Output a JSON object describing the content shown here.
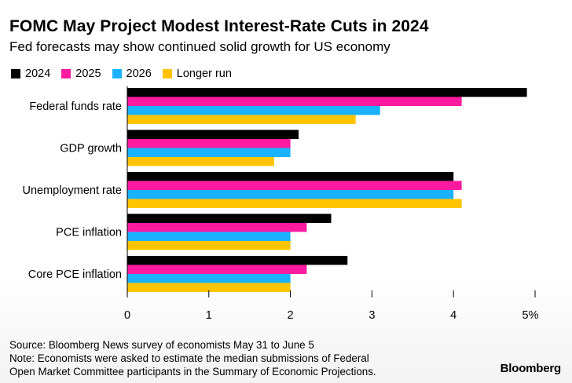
{
  "title": "FOMC May Project Modest Interest-Rate Cuts in 2024",
  "subtitle": "Fed forecasts may show continued solid growth for US economy",
  "chart_data": {
    "type": "bar",
    "orientation": "horizontal",
    "title": "FOMC May Project Modest Interest-Rate Cuts in 2024",
    "subtitle": "Fed forecasts may show continued solid growth for US economy",
    "categories": [
      "Federal funds rate",
      "GDP growth",
      "Unemployment rate",
      "PCE inflation",
      "Core PCE inflation"
    ],
    "series": [
      {
        "name": "2024",
        "color": "#000000",
        "values": [
          4.9,
          2.1,
          4.0,
          2.5,
          2.7
        ]
      },
      {
        "name": "2025",
        "color": "#ff1aa0",
        "values": [
          4.1,
          2.0,
          4.1,
          2.2,
          2.2
        ]
      },
      {
        "name": "2026",
        "color": "#1ab2ff",
        "values": [
          3.1,
          2.0,
          4.0,
          2.0,
          2.0
        ]
      },
      {
        "name": "Longer run",
        "color": "#ffc400",
        "values": [
          2.8,
          1.8,
          4.1,
          2.0,
          2.0
        ]
      }
    ],
    "xlim": [
      0,
      5
    ],
    "tick_labels": [
      "0",
      "1",
      "2",
      "3",
      "4",
      "5%"
    ],
    "xlabel": "",
    "ylabel": "",
    "grid": false,
    "legend_position": "top-left"
  },
  "footer": {
    "source": "Source: Bloomberg News survey of economists May 31 to June 5",
    "note_line1": "Note: Economists were asked to estimate the median submissions of Federal",
    "note_line2": "Open Market Committee participants in the Summary of Economic Projections."
  },
  "brand": "Bloomberg"
}
